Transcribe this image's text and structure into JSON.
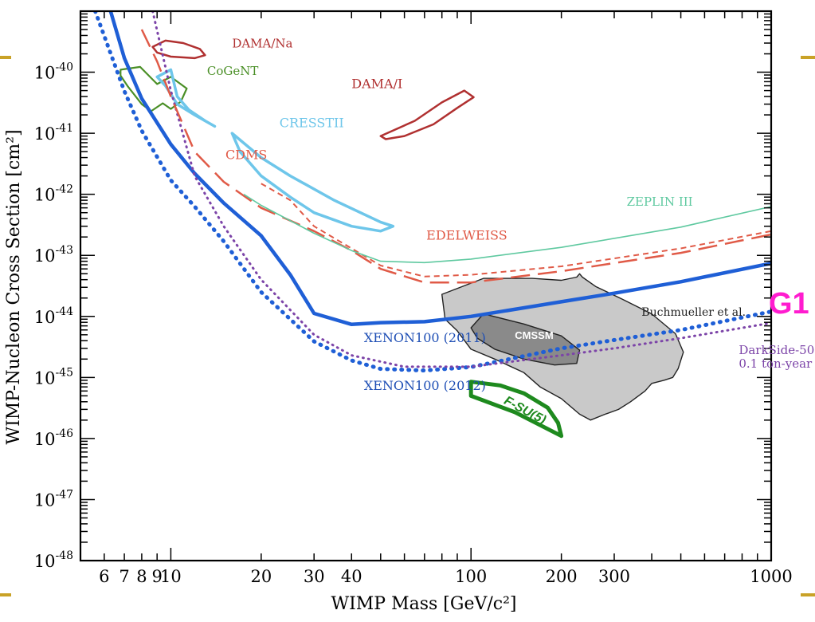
{
  "chart_data": {
    "type": "line",
    "xlabel": "WIMP Mass [GeV/c²]",
    "ylabel": "WIMP-Nucleon Cross Section [cm²]",
    "x_scale": "log",
    "y_scale": "log",
    "xlim": [
      5,
      1000
    ],
    "ylim": [
      1e-48,
      1e-39
    ],
    "x_tick_labels": [
      {
        "v": 6,
        "t": "6"
      },
      {
        "v": 7,
        "t": "7"
      },
      {
        "v": 8,
        "t": "8"
      },
      {
        "v": 9,
        "t": "9"
      },
      {
        "v": 10,
        "t": "10"
      },
      {
        "v": 20,
        "t": "20"
      },
      {
        "v": 30,
        "t": "30"
      },
      {
        "v": 40,
        "t": "40"
      },
      {
        "v": 100,
        "t": "100"
      },
      {
        "v": 200,
        "t": "200"
      },
      {
        "v": 300,
        "t": "300"
      },
      {
        "v": 1000,
        "t": "1000"
      }
    ],
    "y_tick_labels": [
      {
        "exp": -40,
        "base": "10",
        "sup": "-40"
      },
      {
        "exp": -41,
        "base": "10",
        "sup": "-41"
      },
      {
        "exp": -42,
        "base": "10",
        "sup": "-42"
      },
      {
        "exp": -43,
        "base": "10",
        "sup": "-43"
      },
      {
        "exp": -44,
        "base": "10",
        "sup": "-44"
      },
      {
        "exp": -45,
        "base": "10",
        "sup": "-45"
      },
      {
        "exp": -46,
        "base": "10",
        "sup": "-46"
      },
      {
        "exp": -47,
        "base": "10",
        "sup": "-47"
      },
      {
        "exp": -48,
        "base": "10",
        "sup": "-48"
      }
    ],
    "lines": [
      {
        "name": "XENON100 (2011)",
        "color": "#1f5fd6",
        "dash": "solid",
        "width": 4.5,
        "points": [
          [
            6.3,
            1e-39
          ],
          [
            7,
            1.7e-40
          ],
          [
            8,
            3.7e-41
          ],
          [
            10,
            6.6e-42
          ],
          [
            12,
            2.2e-42
          ],
          [
            15,
            7.2e-43
          ],
          [
            20,
            2.1e-43
          ],
          [
            25,
            4.8e-44
          ],
          [
            30,
            1.12e-44
          ],
          [
            40,
            7.4e-45
          ],
          [
            50,
            7.9e-45
          ],
          [
            70,
            8.2e-45
          ],
          [
            100,
            1e-44
          ],
          [
            200,
            1.74e-44
          ],
          [
            300,
            2.4e-44
          ],
          [
            500,
            3.7e-44
          ],
          [
            1000,
            7.4e-44
          ]
        ]
      },
      {
        "name": "XENON100 (2012)",
        "color": "#1f5fd6",
        "dash": "dotted",
        "width": 5,
        "points": [
          [
            5.6,
            1e-39
          ],
          [
            7,
            4.9e-41
          ],
          [
            8,
            1.1e-41
          ],
          [
            10,
            1.7e-42
          ],
          [
            12,
            6.3e-43
          ],
          [
            15,
            1.7e-43
          ],
          [
            20,
            2.5e-44
          ],
          [
            30,
            3.9e-45
          ],
          [
            40,
            1.9e-45
          ],
          [
            50,
            1.38e-45
          ],
          [
            70,
            1.3e-45
          ],
          [
            100,
            1.48e-45
          ],
          [
            200,
            3e-45
          ],
          [
            300,
            4.1e-45
          ],
          [
            500,
            6e-45
          ],
          [
            1000,
            1.2e-44
          ]
        ]
      },
      {
        "name": "DarkSide-50",
        "color": "#7c44a8",
        "dash": "dotted",
        "width": 3,
        "points": [
          [
            8.7,
            1e-39
          ],
          [
            10,
            5e-41
          ],
          [
            12,
            2e-42
          ],
          [
            15,
            3e-43
          ],
          [
            20,
            4e-44
          ],
          [
            30,
            5e-45
          ],
          [
            40,
            2.3e-45
          ],
          [
            60,
            1.5e-45
          ],
          [
            100,
            1.5e-45
          ],
          [
            200,
            2.3e-45
          ],
          [
            300,
            3e-45
          ],
          [
            500,
            4.4e-45
          ],
          [
            1000,
            7.8e-45
          ]
        ]
      },
      {
        "name": "CDMS",
        "color": "#e05a47",
        "dash": "dashed",
        "width": 2.5,
        "points": [
          [
            8,
            5e-40
          ],
          [
            9,
            1.5e-40
          ],
          [
            10,
            4e-41
          ],
          [
            12,
            5e-42
          ],
          [
            15,
            1.6e-42
          ],
          [
            20,
            6e-43
          ],
          [
            30,
            2.5e-43
          ],
          [
            40,
            1.2e-43
          ],
          [
            50,
            6e-44
          ],
          [
            70,
            3.6e-44
          ],
          [
            100,
            3.6e-44
          ],
          [
            200,
            5.5e-44
          ],
          [
            500,
            1.1e-43
          ],
          [
            1000,
            2.2e-43
          ]
        ]
      },
      {
        "name": "EDELWEISS",
        "color": "#e05a47",
        "dash": "short",
        "width": 2,
        "points": [
          [
            20,
            1.5e-42
          ],
          [
            25,
            8e-43
          ],
          [
            30,
            3e-43
          ],
          [
            40,
            1.3e-43
          ],
          [
            50,
            6.8e-44
          ],
          [
            70,
            4.5e-44
          ],
          [
            100,
            4.8e-44
          ],
          [
            200,
            6.6e-44
          ],
          [
            500,
            1.3e-43
          ],
          [
            1000,
            2.5e-43
          ]
        ]
      },
      {
        "name": "ZEPLIN III",
        "color": "#5fc9a0",
        "dash": "solid",
        "width": 1.6,
        "points": [
          [
            17.5,
            1e-42
          ],
          [
            20,
            6.6e-43
          ],
          [
            30,
            2.3e-43
          ],
          [
            40,
            1.2e-43
          ],
          [
            50,
            8e-44
          ],
          [
            70,
            7.6e-44
          ],
          [
            100,
            8.7e-44
          ],
          [
            200,
            1.35e-43
          ],
          [
            500,
            2.9e-43
          ],
          [
            1000,
            6.3e-43
          ]
        ]
      }
    ],
    "regions": [
      {
        "name": "DAMA/Na",
        "stroke": "#b03030",
        "fill": "none",
        "width": 2.5,
        "points": [
          [
            8.7,
            2.6e-40
          ],
          [
            9.6,
            3.3e-40
          ],
          [
            11,
            3e-40
          ],
          [
            12.5,
            2.4e-40
          ],
          [
            13,
            1.9e-40
          ],
          [
            12,
            1.7e-40
          ],
          [
            10,
            1.8e-40
          ],
          [
            9,
            2.1e-40
          ]
        ]
      },
      {
        "name": "DAMA/I",
        "stroke": "#b03030",
        "fill": "none",
        "width": 2.5,
        "points": [
          [
            50,
            9e-42
          ],
          [
            65,
            1.6e-41
          ],
          [
            80,
            3.2e-41
          ],
          [
            95,
            5e-41
          ],
          [
            102,
            3.9e-41
          ],
          [
            90,
            2.6e-41
          ],
          [
            75,
            1.4e-41
          ],
          [
            60,
            9e-42
          ],
          [
            52,
            8e-42
          ]
        ]
      },
      {
        "name": "CoGeNT",
        "stroke": "#4a8f26",
        "fill": "none",
        "width": 2.2,
        "points": [
          [
            6.8,
            1.1e-40
          ],
          [
            7.9,
            1.22e-40
          ],
          [
            9,
            6.4e-41
          ],
          [
            10,
            8.4e-41
          ],
          [
            11.3,
            5.4e-41
          ],
          [
            10.8,
            3.3e-41
          ],
          [
            10,
            2.5e-41
          ],
          [
            9.4,
            3.1e-41
          ],
          [
            8.6,
            2.3e-41
          ],
          [
            8,
            3e-41
          ],
          [
            7.2,
            5.8e-41
          ],
          [
            6.8,
            8.8e-41
          ]
        ]
      },
      {
        "name": "CRESSTII",
        "stroke": "#6ec6ea",
        "fill": "none",
        "width": 3.5,
        "points": [
          [
            9,
            8.4e-41
          ],
          [
            10,
            1.1e-40
          ],
          [
            10.5,
            4e-41
          ],
          [
            11.5,
            2.4e-41
          ],
          [
            13,
            1.6e-41
          ],
          [
            14,
            1.3e-41
          ],
          [
            12,
            2e-41
          ],
          [
            10.5,
            3e-41
          ],
          [
            9.6,
            6e-41
          ],
          [
            9,
            8.4e-41
          ]
        ]
      },
      {
        "name": "CRESSTII-2",
        "stroke": "#6ec6ea",
        "fill": "none",
        "width": 3.5,
        "points": [
          [
            16,
            1e-41
          ],
          [
            20,
            4e-42
          ],
          [
            25,
            2e-42
          ],
          [
            35,
            8e-43
          ],
          [
            50,
            3.5e-43
          ],
          [
            55,
            3e-43
          ],
          [
            50,
            2.5e-43
          ],
          [
            40,
            3e-43
          ],
          [
            30,
            5e-43
          ],
          [
            25,
            9e-43
          ],
          [
            20,
            2e-42
          ],
          [
            17,
            5e-42
          ],
          [
            16,
            1e-41
          ]
        ]
      },
      {
        "name": "Buchmueller et al.",
        "stroke": "#222222",
        "fill": "#c9c9c9",
        "width": 1.4,
        "points": [
          [
            80,
            2.3e-44
          ],
          [
            110,
            4.2e-44
          ],
          [
            160,
            4.2e-44
          ],
          [
            200,
            3.9e-44
          ],
          [
            225,
            4.4e-44
          ],
          [
            230,
            5e-44
          ],
          [
            235,
            4.4e-44
          ],
          [
            260,
            3.1e-44
          ],
          [
            320,
            1.9e-44
          ],
          [
            400,
            1.1e-44
          ],
          [
            480,
            5.2e-45
          ],
          [
            510,
            2.6e-45
          ],
          [
            490,
            1.4e-45
          ],
          [
            470,
            1e-45
          ],
          [
            440,
            9e-46
          ],
          [
            400,
            8e-46
          ],
          [
            380,
            6e-46
          ],
          [
            340,
            4e-46
          ],
          [
            310,
            3e-46
          ],
          [
            280,
            2.5e-46
          ],
          [
            250,
            2e-46
          ],
          [
            230,
            2.5e-46
          ],
          [
            200,
            4.5e-46
          ],
          [
            170,
            7e-46
          ],
          [
            150,
            1.2e-45
          ],
          [
            120,
            2e-45
          ],
          [
            100,
            2.9e-45
          ],
          [
            90,
            5.8e-45
          ],
          [
            82,
            9e-45
          ],
          [
            80,
            2.3e-44
          ]
        ]
      },
      {
        "name": "CMSSM",
        "stroke": "#222222",
        "fill": "#8a8a8a",
        "width": 1.4,
        "points": [
          [
            110,
            1.1e-44
          ],
          [
            150,
            7.5e-45
          ],
          [
            200,
            4.8e-45
          ],
          [
            230,
            2.8e-45
          ],
          [
            225,
            1.7e-45
          ],
          [
            190,
            1.6e-45
          ],
          [
            150,
            2e-45
          ],
          [
            120,
            2.9e-45
          ],
          [
            105,
            4.4e-45
          ],
          [
            100,
            6.5e-45
          ],
          [
            110,
            1.1e-44
          ]
        ]
      },
      {
        "name": "F-SU(5)",
        "stroke": "#1e8a1e",
        "fill": "none",
        "width": 5,
        "points": [
          [
            100,
            8.5e-46
          ],
          [
            125,
            7.4e-46
          ],
          [
            150,
            5.5e-46
          ],
          [
            180,
            3.2e-46
          ],
          [
            195,
            1.8e-46
          ],
          [
            200,
            1.1e-46
          ],
          [
            140,
            2.7e-46
          ],
          [
            100,
            5e-46
          ],
          [
            100,
            8.5e-46
          ]
        ]
      }
    ],
    "annotations": [
      {
        "text": "DAMA/Na",
        "x": 16,
        "y": 2.55e-40,
        "color": "#b03030",
        "italic": false,
        "bold": false,
        "size": 15
      },
      {
        "text": "CoGeNT",
        "x": 13.2,
        "y": 9e-41,
        "color": "#4a8f26",
        "italic": false,
        "bold": false,
        "size": 15
      },
      {
        "text": "DAMA/I",
        "x": 40,
        "y": 5.5e-41,
        "color": "#b03030",
        "italic": false,
        "bold": false,
        "size": 16
      },
      {
        "text": "CRESSTII",
        "x": 23,
        "y": 1.25e-41,
        "color": "#6ec6ea",
        "italic": false,
        "bold": false,
        "size": 16
      },
      {
        "text": "CDMS",
        "x": 15.2,
        "y": 3.8e-42,
        "color": "#e05a47",
        "italic": false,
        "bold": false,
        "size": 16
      },
      {
        "text": "ZEPLIN III",
        "x": 330,
        "y": 6.5e-43,
        "color": "#5fc9a0",
        "italic": false,
        "bold": false,
        "size": 15
      },
      {
        "text": "EDELWEISS",
        "x": 71,
        "y": 1.8e-43,
        "color": "#e05a47",
        "italic": false,
        "bold": false,
        "size": 16
      },
      {
        "text": "Buchmueller et al.",
        "x": 370,
        "y": 1.02e-44,
        "color": "#222222",
        "italic": false,
        "bold": false,
        "size": 14
      },
      {
        "text": "CMSSM",
        "x": 140,
        "y": 4.3e-45,
        "color": "#ffffff",
        "italic": false,
        "bold": true,
        "size": 13,
        "sans": true
      },
      {
        "text": "XENON100 (2011)",
        "x": 44,
        "y": 3.8e-45,
        "color": "#1f4fb5",
        "italic": false,
        "bold": false,
        "size": 16
      },
      {
        "text": "XENON100 (2012)",
        "x": 44,
        "y": 6.2e-46,
        "color": "#1f4fb5",
        "italic": false,
        "bold": false,
        "size": 16
      },
      {
        "text": "DarkSide-50",
        "x": 780,
        "y": 2.4e-45,
        "color": "#7c44a8",
        "italic": false,
        "bold": false,
        "size": 15
      },
      {
        "text": "0.1 ton-year",
        "x": 780,
        "y": 1.45e-45,
        "color": "#7c44a8",
        "italic": false,
        "bold": false,
        "size": 15
      },
      {
        "text": "F-SU(5)",
        "x": 128,
        "y": 3.8e-46,
        "color": "#1e8a1e",
        "italic": true,
        "bold": true,
        "size": 16,
        "sans": true,
        "rotate": 28
      }
    ]
  },
  "side_label": "G1"
}
